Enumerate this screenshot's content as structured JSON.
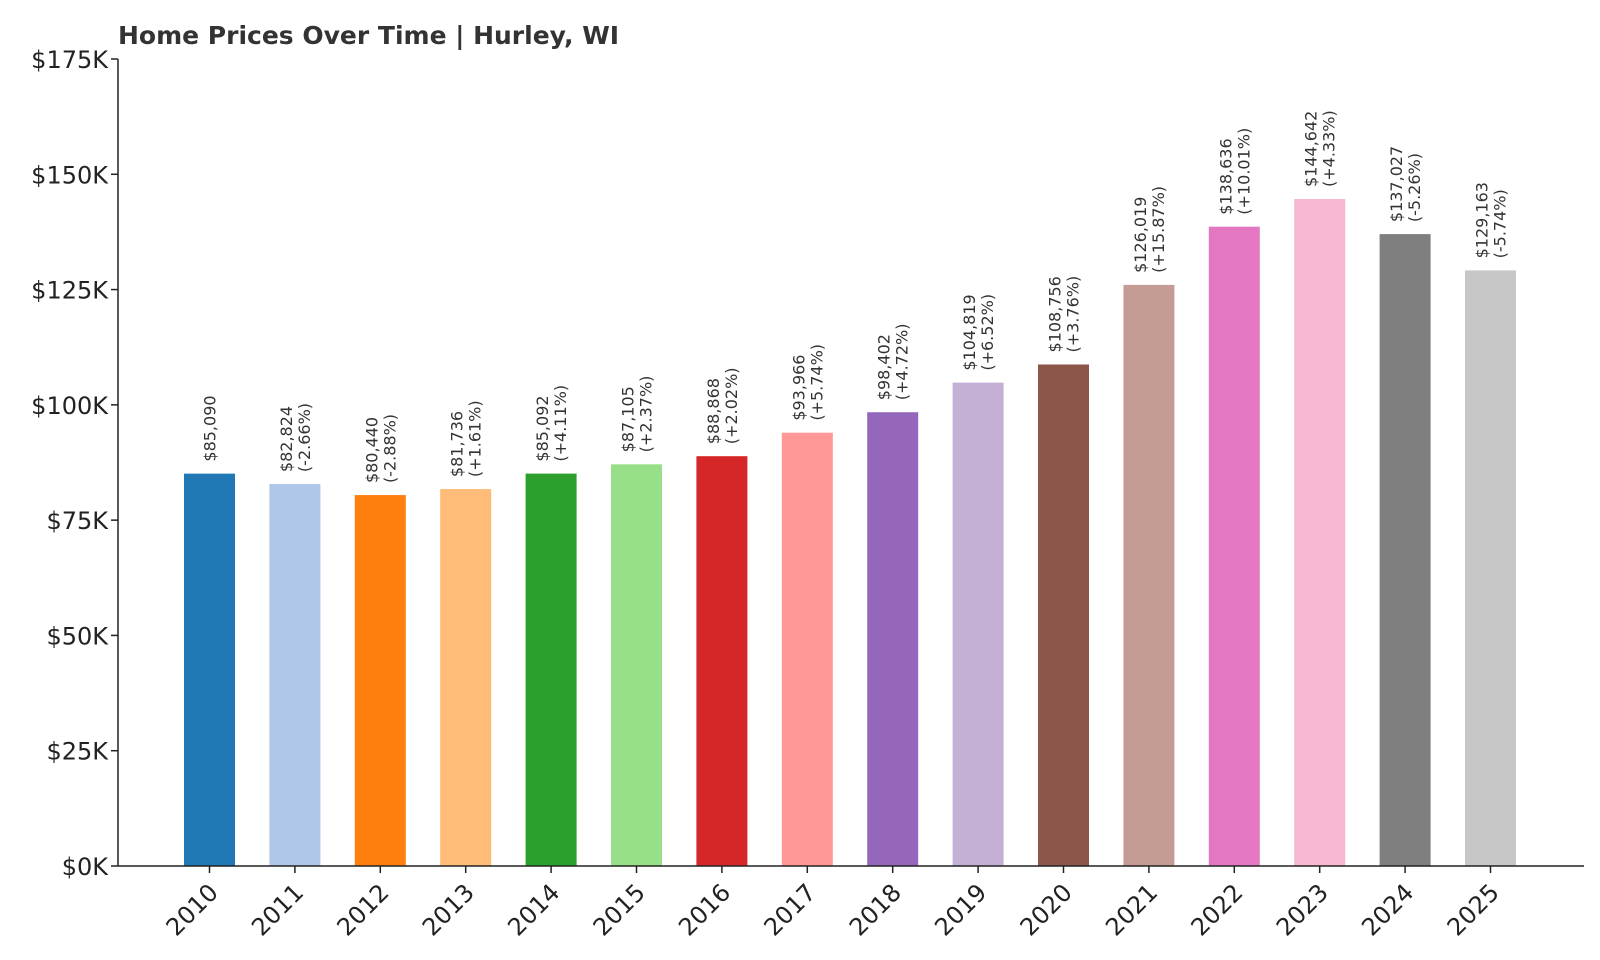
{
  "chart_data": {
    "type": "bar",
    "title": "Home Prices Over Time | Hurley, WI",
    "xlabel": "",
    "ylabel": "",
    "ylim": [
      0,
      175000
    ],
    "yticks": [
      0,
      25000,
      50000,
      75000,
      100000,
      125000,
      150000,
      175000
    ],
    "ytick_labels": [
      "$0K",
      "$25K",
      "$50K",
      "$75K",
      "$100K",
      "$125K",
      "$150K",
      "$175K"
    ],
    "grid": false,
    "legend": "none",
    "categories": [
      "2010",
      "2011",
      "2012",
      "2013",
      "2014",
      "2015",
      "2016",
      "2017",
      "2018",
      "2019",
      "2020",
      "2021",
      "2022",
      "2023",
      "2024",
      "2025"
    ],
    "values": [
      85090,
      82824,
      80440,
      81736,
      85092,
      87105,
      88868,
      93966,
      98402,
      104819,
      108756,
      126019,
      138636,
      144642,
      137027,
      129163
    ],
    "value_labels": [
      "$85,090",
      "$82,824",
      "$80,440",
      "$81,736",
      "$85,092",
      "$87,105",
      "$88,868",
      "$93,966",
      "$98,402",
      "$104,819",
      "$108,756",
      "$126,019",
      "$138,636",
      "$144,642",
      "$137,027",
      "$129,163"
    ],
    "change_labels": [
      "",
      "(-2.66%)",
      "(-2.88%)",
      "(+1.61%)",
      "(+4.11%)",
      "(+2.37%)",
      "(+2.02%)",
      "(+5.74%)",
      "(+4.72%)",
      "(+6.52%)",
      "(+3.76%)",
      "(+15.87%)",
      "(+10.01%)",
      "(+4.33%)",
      "(-5.26%)",
      "(-5.74%)"
    ],
    "colors": [
      "#1f77b4",
      "#aec7e8",
      "#ff7f0e",
      "#ffbb78",
      "#2ca02c",
      "#98df8a",
      "#d62728",
      "#ff9896",
      "#9467bd",
      "#c5b0d5",
      "#8c564b",
      "#c49c94",
      "#e377c2",
      "#f7b6d2",
      "#7f7f7f",
      "#c7c7c7"
    ]
  }
}
